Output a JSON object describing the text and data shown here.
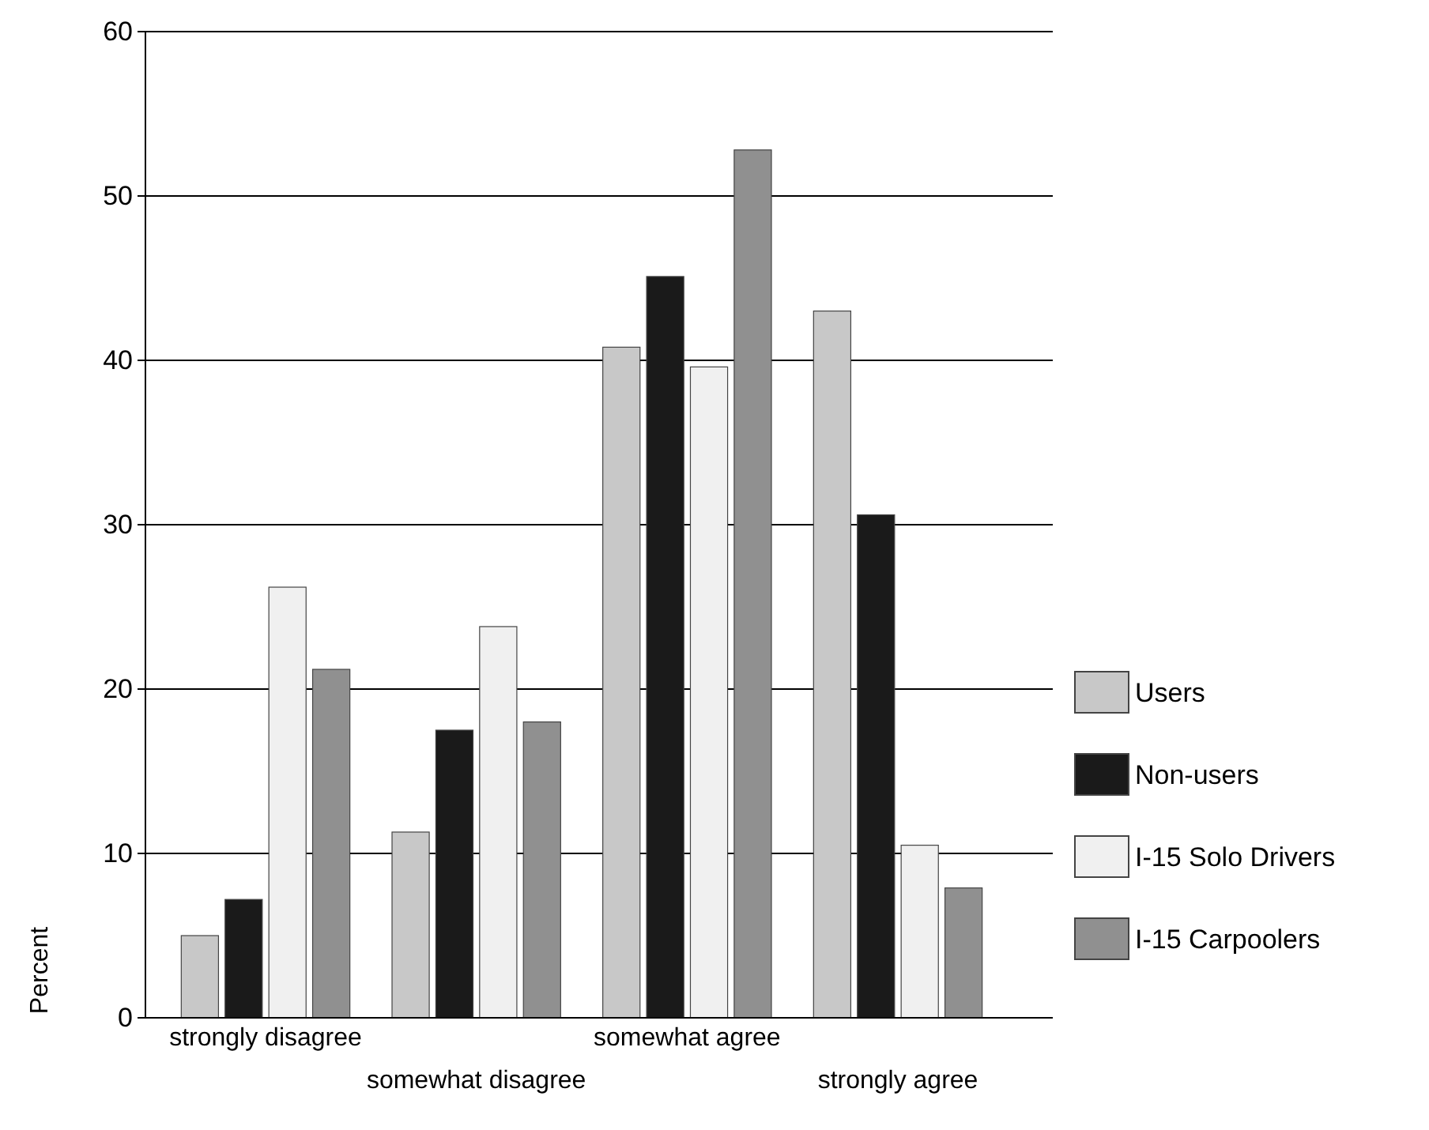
{
  "chart_data": {
    "type": "bar",
    "ylabel": "Percent",
    "categories": [
      "strongly disagree",
      "somewhat disagree",
      "somewhat agree",
      "strongly agree"
    ],
    "series": [
      {
        "name": "Users",
        "color": "#c8c8c8",
        "values": [
          5.0,
          11.3,
          40.8,
          43.0
        ]
      },
      {
        "name": "Non-users",
        "color": "#1a1a1a",
        "values": [
          7.2,
          17.5,
          45.1,
          30.6
        ]
      },
      {
        "name": "I-15 Solo Drivers",
        "color": "#f0f0f0",
        "values": [
          26.2,
          23.8,
          39.6,
          10.5
        ]
      },
      {
        "name": "I-15 Carpoolers",
        "color": "#909090",
        "values": [
          21.2,
          18.0,
          52.8,
          7.9
        ]
      }
    ],
    "ylim": [
      0,
      60
    ],
    "yticks": [
      0,
      10,
      20,
      30,
      40,
      50,
      60
    ],
    "grid": "y",
    "legend": "right"
  }
}
